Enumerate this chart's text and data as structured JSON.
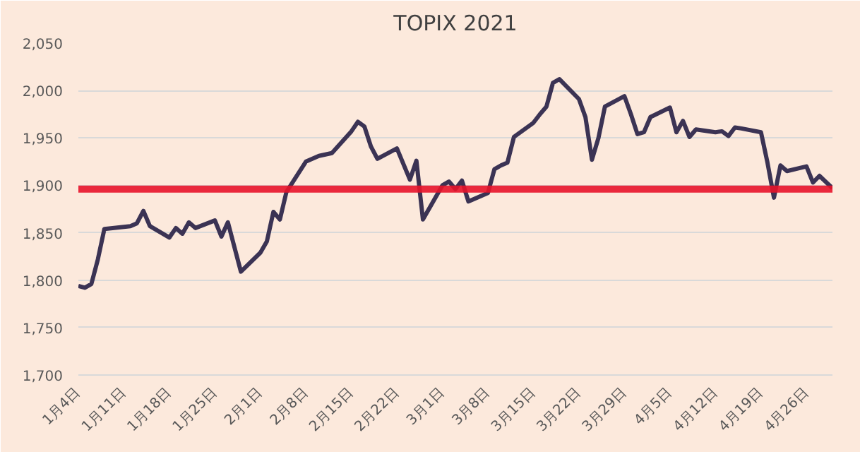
{
  "chart_data": {
    "type": "line",
    "title": "TOPIX 2021",
    "x": [
      "2021-01-04",
      "2021-01-05",
      "2021-01-06",
      "2021-01-07",
      "2021-01-08",
      "2021-01-12",
      "2021-01-13",
      "2021-01-14",
      "2021-01-15",
      "2021-01-18",
      "2021-01-19",
      "2021-01-20",
      "2021-01-21",
      "2021-01-22",
      "2021-01-25",
      "2021-01-26",
      "2021-01-27",
      "2021-01-28",
      "2021-01-29",
      "2021-02-01",
      "2021-02-02",
      "2021-02-03",
      "2021-02-04",
      "2021-02-05",
      "2021-02-08",
      "2021-02-09",
      "2021-02-10",
      "2021-02-12",
      "2021-02-15",
      "2021-02-16",
      "2021-02-17",
      "2021-02-18",
      "2021-02-19",
      "2021-02-22",
      "2021-02-24",
      "2021-02-25",
      "2021-02-26",
      "2021-03-01",
      "2021-03-02",
      "2021-03-03",
      "2021-03-04",
      "2021-03-05",
      "2021-03-08",
      "2021-03-09",
      "2021-03-10",
      "2021-03-11",
      "2021-03-12",
      "2021-03-15",
      "2021-03-16",
      "2021-03-17",
      "2021-03-18",
      "2021-03-19",
      "2021-03-22",
      "2021-03-23",
      "2021-03-24",
      "2021-03-25",
      "2021-03-26",
      "2021-03-29",
      "2021-03-30",
      "2021-03-31",
      "2021-04-01",
      "2021-04-02",
      "2021-04-05",
      "2021-04-06",
      "2021-04-07",
      "2021-04-08",
      "2021-04-09",
      "2021-04-12",
      "2021-04-13",
      "2021-04-14",
      "2021-04-15",
      "2021-04-16",
      "2021-04-19",
      "2021-04-20",
      "2021-04-21",
      "2021-04-22",
      "2021-04-23",
      "2021-04-26",
      "2021-04-27",
      "2021-04-28",
      "2021-04-30"
    ],
    "series": [
      {
        "color": "#3b3354",
        "values": [
          1794,
          1792,
          1796,
          1822,
          1854,
          1857,
          1860,
          1873,
          1857,
          1845,
          1855,
          1849,
          1861,
          1855,
          1863,
          1846,
          1861,
          1835,
          1809,
          1829,
          1841,
          1872,
          1864,
          1893,
          1925,
          1928,
          1931,
          1934,
          1957,
          1967,
          1962,
          1941,
          1928,
          1939,
          1906,
          1926,
          1864,
          1900,
          1904,
          1896,
          1905,
          1883,
          1892,
          1917,
          1921,
          1924,
          1951,
          1966,
          1975,
          1983,
          2008,
          2012,
          1991,
          1972,
          1927,
          1950,
          1983,
          1994,
          1975,
          1954,
          1956,
          1972,
          1982,
          1956,
          1968,
          1951,
          1959,
          1956,
          1957,
          1952,
          1961,
          1960,
          1956,
          1924,
          1887,
          1921,
          1915,
          1920,
          1903,
          1910,
          1897
        ]
      }
    ],
    "xlim": [
      "2021-01-04",
      "2021-04-30"
    ],
    "xticks": [
      {
        "value": "2021-01-04",
        "label": "1月4日"
      },
      {
        "value": "2021-01-11",
        "label": "1月11日"
      },
      {
        "value": "2021-01-18",
        "label": "1月18日"
      },
      {
        "value": "2021-01-25",
        "label": "1月25日"
      },
      {
        "value": "2021-02-01",
        "label": "2月1日"
      },
      {
        "value": "2021-02-08",
        "label": "2月8日"
      },
      {
        "value": "2021-02-15",
        "label": "2月15日"
      },
      {
        "value": "2021-02-22",
        "label": "2月22日"
      },
      {
        "value": "2021-03-01",
        "label": "3月1日"
      },
      {
        "value": "2021-03-08",
        "label": "3月8日"
      },
      {
        "value": "2021-03-15",
        "label": "3月15日"
      },
      {
        "value": "2021-03-22",
        "label": "3月22日"
      },
      {
        "value": "2021-03-29",
        "label": "3月29日"
      },
      {
        "value": "2021-04-05",
        "label": "4月5日"
      },
      {
        "value": "2021-04-12",
        "label": "4月12日"
      },
      {
        "value": "2021-04-19",
        "label": "4月19日"
      },
      {
        "value": "2021-04-26",
        "label": "4月26日"
      }
    ],
    "ylim": [
      1700,
      2050
    ],
    "yticks": [
      {
        "value": 1700,
        "label": "1,700"
      },
      {
        "value": 1750,
        "label": "1,750"
      },
      {
        "value": 1800,
        "label": "1,800"
      },
      {
        "value": 1850,
        "label": "1,850"
      },
      {
        "value": 1900,
        "label": "1,900"
      },
      {
        "value": 1950,
        "label": "1,950"
      },
      {
        "value": 2000,
        "label": "2,000"
      },
      {
        "value": 2050,
        "label": "2,050"
      }
    ],
    "ref_lines": [
      {
        "axis": "y",
        "value": 1896,
        "color": "#e8132a",
        "line_style": "solid"
      }
    ],
    "grid": "y",
    "marker": "none",
    "line_style": "solid"
  }
}
